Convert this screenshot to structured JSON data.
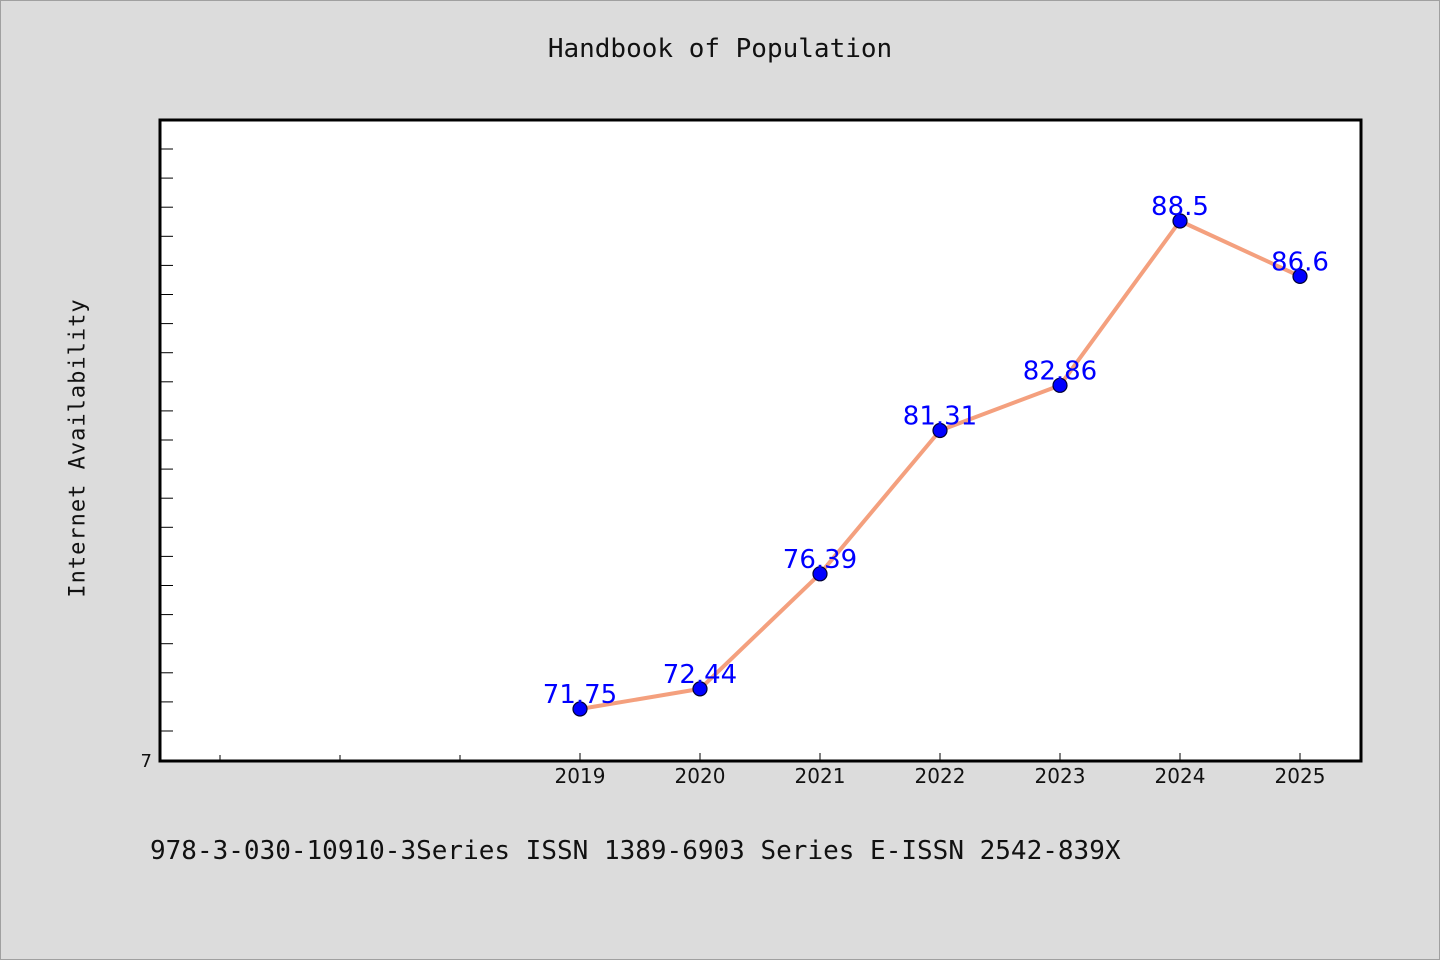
{
  "chart_data": {
    "type": "line",
    "title": "Handbook of Population",
    "ylabel": "Internet Availability",
    "xlabel": "",
    "x_tick_labels": [
      "2019",
      "2020",
      "2021",
      "2022",
      "2023",
      "2024",
      "2025"
    ],
    "y_tick_label": "7",
    "series": [
      {
        "x": [
          "2019",
          "2020",
          "2021",
          "2022",
          "2023",
          "2024",
          "2025"
        ],
        "values": [
          71.75,
          72.44,
          76.39,
          81.31,
          82.86,
          88.5,
          86.6
        ],
        "data_labels": [
          "71.75",
          "72.44",
          "76.39",
          "81.31",
          "82.86",
          "88.5",
          "86.6"
        ]
      }
    ],
    "ylim": [
      70,
      92
    ],
    "grid": false,
    "legend": "none",
    "colors": {
      "line": "#f4a07e",
      "marker": "#0000ff",
      "data_label": "#0000ff",
      "plot_background": "#ffffff",
      "page_background": "#dcdcdc"
    }
  },
  "footer": "978-3-030-10910-3Series ISSN 1389-6903 Series E-ISSN 2542-839X"
}
